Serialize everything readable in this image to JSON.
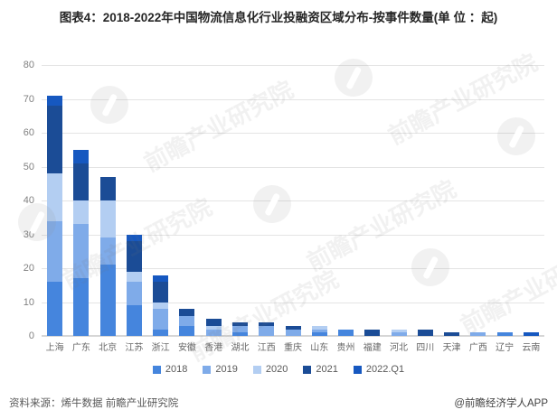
{
  "title": "图表4：2018-2022年中国物流信息化行业投融资区域分布-按事件数量(单 位 ：起)",
  "watermark": {
    "text": "前瞻产业研究院"
  },
  "chart_data": {
    "type": "bar",
    "stacked": true,
    "title": "图表4：2018-2022年中国物流信息化行业投融资区域分布-按事件数量(单 位 ：起)",
    "xlabel": "",
    "ylabel": "",
    "ylim": [
      0,
      80
    ],
    "ytick_interval": 10,
    "grid": true,
    "legend_position": "bottom",
    "categories": [
      "上海",
      "广东",
      "北京",
      "江苏",
      "浙江",
      "安徽",
      "香港",
      "湖北",
      "江西",
      "重庆",
      "山东",
      "贵州",
      "福建",
      "河北",
      "四川",
      "天津",
      "广西",
      "辽宁",
      "云南"
    ],
    "series": [
      {
        "name": "2018",
        "color": "#4585dd",
        "values": [
          16,
          17,
          21,
          9,
          2,
          3,
          0,
          1,
          0,
          0,
          1,
          2,
          0,
          0,
          0,
          0,
          0,
          1,
          0
        ]
      },
      {
        "name": "2019",
        "color": "#7fabe9",
        "values": [
          18,
          16,
          8,
          7,
          6,
          3,
          2,
          2,
          3,
          2,
          1,
          0,
          0,
          1,
          0,
          0,
          1,
          0,
          0
        ]
      },
      {
        "name": "2020",
        "color": "#b3cef2",
        "values": [
          14,
          7,
          11,
          3,
          2,
          0,
          1,
          0,
          0,
          0,
          1,
          0,
          0,
          1,
          0,
          0,
          0,
          0,
          0
        ]
      },
      {
        "name": "2021",
        "color": "#1b4c96",
        "values": [
          20,
          11,
          7,
          9,
          6,
          2,
          2,
          1,
          1,
          1,
          0,
          0,
          2,
          0,
          2,
          1,
          0,
          0,
          0
        ]
      },
      {
        "name": "2022.Q1",
        "color": "#1658c0",
        "values": [
          3,
          4,
          0,
          2,
          2,
          0,
          0,
          0,
          0,
          0,
          0,
          0,
          0,
          0,
          0,
          0,
          0,
          0,
          1
        ]
      }
    ],
    "totals": [
      71,
      55,
      47,
      30,
      18,
      8,
      5,
      4,
      4,
      3,
      3,
      2,
      2,
      2,
      2,
      1,
      1,
      1,
      1
    ]
  },
  "footer": {
    "source": "资料来源：烯牛数据 前瞻产业研究院",
    "brand": "@前瞻经济学人APP"
  }
}
